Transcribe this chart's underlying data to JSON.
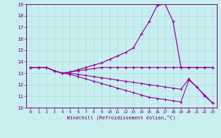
{
  "xlabel": "Windchill (Refroidissement éolien,°C)",
  "bg_color": "#c8eef0",
  "line_color": "#990099",
  "grid_color": "#aadddd",
  "axis_color": "#660066",
  "xlim": [
    -0.5,
    23.5
  ],
  "ylim": [
    10,
    19
  ],
  "xticks": [
    0,
    1,
    2,
    3,
    4,
    5,
    6,
    7,
    8,
    9,
    10,
    11,
    12,
    13,
    14,
    15,
    16,
    17,
    18,
    19,
    20,
    21,
    22,
    23
  ],
  "yticks": [
    10,
    11,
    12,
    13,
    14,
    15,
    16,
    17,
    18,
    19
  ],
  "line1_y": [
    13.5,
    13.5,
    13.5,
    13.2,
    13.0,
    13.1,
    13.3,
    13.5,
    13.7,
    13.9,
    14.2,
    14.5,
    14.8,
    15.2,
    16.4,
    17.5,
    18.9,
    19.0,
    17.5,
    13.5,
    13.5,
    13.5,
    13.5,
    13.5
  ],
  "line2_y": [
    13.5,
    13.5,
    13.5,
    13.2,
    13.0,
    13.1,
    13.2,
    13.3,
    13.4,
    13.5,
    13.5,
    13.5,
    13.5,
    13.5,
    13.5,
    13.5,
    13.5,
    13.5,
    13.5,
    13.5,
    13.5,
    13.5,
    13.5,
    13.5
  ],
  "line3_y": [
    13.5,
    13.5,
    13.5,
    13.2,
    13.0,
    13.0,
    12.9,
    12.8,
    12.7,
    12.6,
    12.5,
    12.4,
    12.3,
    12.2,
    12.1,
    12.0,
    11.9,
    11.8,
    11.7,
    11.6,
    12.5,
    11.8,
    11.1,
    10.4
  ],
  "line4_y": [
    13.5,
    13.5,
    13.5,
    13.2,
    13.0,
    12.9,
    12.7,
    12.5,
    12.3,
    12.1,
    11.9,
    11.7,
    11.5,
    11.3,
    11.1,
    10.9,
    10.8,
    10.7,
    10.6,
    10.5,
    12.4,
    11.8,
    11.0,
    10.4
  ]
}
